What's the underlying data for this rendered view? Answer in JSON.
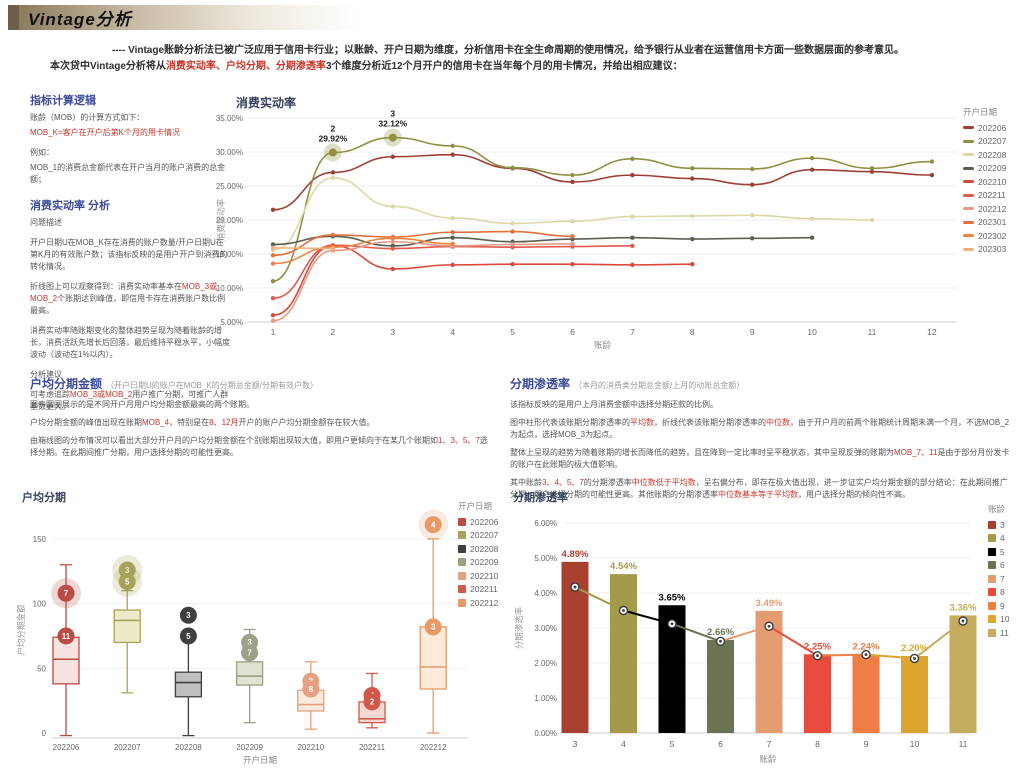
{
  "banner": {
    "title": "Vintage分析"
  },
  "intro": {
    "line1": "---- Vintage账龄分析法已被广泛应用于信用卡行业；以账龄、开户日期为维度，分析信用卡在全生命周期的使用情况，给予银行从业者在运营信用卡方面一些数据层面的参考意见。",
    "line2_parts": [
      {
        "t": "本次贷中Vintage分析将从"
      },
      {
        "t": "消费实动率、户均分期、分期渗透率",
        "red": true
      },
      {
        "t": "3个维度分析近12个月开户的信用卡在当年每个月的用卡情况，并给出相应建议："
      }
    ]
  },
  "left_panel": {
    "h1": "指标计算逻辑",
    "p1": "账龄（MOB）的计算方式如下：",
    "p2_parts": [
      {
        "t": "MOB_K=客户在开户后第K个月的用卡情况",
        "red": true
      }
    ],
    "p3": "例如：",
    "p4": "MOB_1的消费总金额代表在开户当月的账户消费的总金额；",
    "h2": "消费实动率 分析",
    "sub1": "问题描述",
    "p5": "开户日期U在MOB_K存在消费的账户数量/开户日期U在第K月的有效账户数；该指标反映的是用户开户到消费的转化情况。",
    "p6_parts": [
      {
        "t": "折线图上可以观察得到：消费实动率基本在"
      },
      {
        "t": "MOB_3或MOB_2",
        "red": true
      },
      {
        "t": "个账期达到峰值，即信用卡存在消费账户数比例最高。"
      }
    ],
    "p7": "消费实动率随账期变化的整体趋势呈现为随着账龄的增长，消费活跃先增长后回落，最后维持平稳水平，小幅度波动（波动在1%以内）。",
    "sub2": "分析建议",
    "p8_parts": [
      {
        "t": "可考虑追踪"
      },
      {
        "t": "MOB_3或MOB_2",
        "red": true
      },
      {
        "t": "用户推广分期，可推广人群基数更大。"
      }
    ]
  },
  "sec_box": {
    "h": "户均分期金额",
    "note": "（开户日期U的账户在MOB_K的分期总金额/分期有效户数）",
    "p1": "图中圆圈展示的是不同开户月用户均分期金额最高的两个账期。",
    "p2_parts": [
      {
        "t": "户均分期金额的峰值出现在账期"
      },
      {
        "t": "MOB_4",
        "red": true
      },
      {
        "t": "，特别是在"
      },
      {
        "t": "8、12月",
        "red": true
      },
      {
        "t": "开户的账户户均分期金额存在较大值。"
      }
    ],
    "p3_parts": [
      {
        "t": "由箱线图的分布情况可以看出大部分开户月的户均分期金额在个别账期出现较大值，即用户更倾向于在某几个账期如"
      },
      {
        "t": "1、3、5、7",
        "red": true
      },
      {
        "t": "选择分期。在此期间推广分期，用户选择分期的可能性更高。"
      }
    ]
  },
  "sec_pen": {
    "h": "分期渗透率",
    "note": "（本月的消费类分期总金额/上月的动账总金额）",
    "p1": "该指标反映的是用户上月消费金额中选择分期还款的比例。",
    "p2_parts": [
      {
        "t": "图中柱形代表该账期分期渗透率的"
      },
      {
        "t": "平均数",
        "red": true
      },
      {
        "t": "，折线代表该账期分期渗透率的"
      },
      {
        "t": "中位数",
        "red": true
      },
      {
        "t": "，由于开户月的前两个账期统计周期未满一个月，不选MOB_2为起点，选择MOB_3为起点。"
      }
    ],
    "p3_parts": [
      {
        "t": "整体上呈现的趋势为随着账期的增长而降低的趋势，且在降到一定比率时呈平稳状态，其中呈现反弹的账期为"
      },
      {
        "t": "MOB_7、11",
        "red": true
      },
      {
        "t": "是由于部分月份发卡的账户在此账期的极大值影响。"
      }
    ],
    "p4_parts": [
      {
        "t": "其中账龄"
      },
      {
        "t": "3、4、5、7",
        "red": true
      },
      {
        "t": "的分期渗透率"
      },
      {
        "t": "中位数低于平均数",
        "red": true
      },
      {
        "t": "，呈右偏分布，即存在极大值出现，进一步证实户均分期金额的部分结论：在此期间推广分期，用户选择分期的可能性更高。其他账期的分期渗透率"
      },
      {
        "t": "中位数基本等于平均数",
        "red": true
      },
      {
        "t": "，用户选择分期的倾向性不高。"
      }
    ]
  },
  "chart_data": [
    {
      "type": "line",
      "title": "消费实动率",
      "xlabel": "账龄",
      "ylabel": "消费实动率",
      "x": [
        1,
        2,
        3,
        4,
        5,
        6,
        7,
        8,
        9,
        10,
        11,
        12
      ],
      "ylim": [
        5,
        35
      ],
      "yticks": [
        [
          5,
          "5.00%"
        ],
        [
          10,
          "10.00%"
        ],
        [
          15,
          "15.00%"
        ],
        [
          20,
          "20.00%"
        ],
        [
          25,
          "25.00%"
        ],
        [
          30,
          "30.00%"
        ],
        [
          35,
          "35.00%"
        ]
      ],
      "legend_title": "开户日期",
      "series": [
        {
          "name": "202206",
          "color": "#9d4136",
          "values": [
            21.5,
            27.0,
            29.3,
            29.6,
            27.6,
            25.6,
            26.6,
            26.1,
            25.2,
            27.4,
            27.1,
            26.6
          ]
        },
        {
          "name": "202207",
          "color": "#8f9141",
          "values": [
            11.0,
            29.92,
            32.12,
            30.9,
            27.7,
            26.6,
            29.0,
            27.6,
            27.5,
            29.1,
            27.6,
            28.6
          ]
        },
        {
          "name": "202208",
          "color": "#ded7a6",
          "values": [
            15.6,
            26.2,
            22.0,
            20.3,
            19.5,
            19.8,
            20.5,
            20.6,
            20.7,
            20.2,
            20.0
          ]
        },
        {
          "name": "202209",
          "color": "#5c6051",
          "values": [
            16.4,
            17.6,
            16.2,
            17.4,
            16.8,
            17.2,
            17.4,
            17.2,
            17.3,
            17.4
          ]
        },
        {
          "name": "202210",
          "color": "#d9483b",
          "values": [
            6.0,
            16.2,
            12.8,
            13.4,
            13.5,
            13.5,
            13.4,
            13.5
          ]
        },
        {
          "name": "202211",
          "color": "#e05a4e",
          "values": [
            8.5,
            16.3,
            15.8,
            16.1,
            16.0,
            16.1,
            16.2
          ]
        },
        {
          "name": "202212",
          "color": "#e79a85",
          "values": [
            5.2,
            15.5,
            16.8,
            16.2,
            16.4,
            16.5
          ]
        },
        {
          "name": "202301",
          "color": "#e4703d",
          "values": [
            14.8,
            17.8,
            17.5,
            18.2,
            18.3,
            17.6
          ]
        },
        {
          "name": "202302",
          "color": "#ec8642",
          "values": [
            13.6,
            16.0,
            17.3,
            16.5
          ]
        },
        {
          "name": "202303",
          "color": "#eeb07c",
          "values": [
            15.9,
            15.8
          ]
        }
      ],
      "annotations": [
        {
          "series": "202207",
          "x": 2,
          "text_top": "2",
          "text_bottom": "29.92%"
        },
        {
          "series": "202207",
          "x": 3,
          "text_top": "3",
          "text_bottom": "32.12%"
        }
      ]
    },
    {
      "type": "box",
      "title": "户均分期",
      "xlabel": "开户日期",
      "ylabel": "户均分期金额",
      "ylim": [
        0,
        170
      ],
      "yticks": [
        [
          0,
          "0"
        ],
        [
          50,
          "50"
        ],
        [
          100,
          "100"
        ],
        [
          150,
          "150"
        ]
      ],
      "legend_title": "开户日期",
      "boxes": [
        {
          "label": "202206",
          "stroke": "#bb4c44",
          "fill": "#f7e3e1",
          "lo": -2,
          "q1": 38,
          "med": 57,
          "q3": 74,
          "hi": 130,
          "bubbles": [
            {
              "n": "7",
              "v": 108,
              "big": true
            },
            {
              "n": "11",
              "v": 75
            }
          ]
        },
        {
          "label": "202207",
          "stroke": "#a8a258",
          "fill": "#eceac9",
          "lo": 31,
          "q1": 70,
          "med": 87,
          "q3": 95,
          "hi": 110,
          "bubbles": [
            {
              "n": "3",
              "v": 126,
              "big": true
            },
            {
              "n": "5",
              "v": 117,
              "big": true
            }
          ]
        },
        {
          "label": "202208",
          "stroke": "#3f3f3f",
          "fill": "#bfbfbf",
          "lo": -2,
          "q1": 28,
          "med": 39,
          "q3": 47,
          "hi": 74,
          "bubbles": [
            {
              "n": "3",
              "v": 91
            },
            {
              "n": "5",
              "v": 75
            }
          ]
        },
        {
          "label": "202209",
          "stroke": "#9aa184",
          "fill": "#dfe3d2",
          "lo": 8,
          "q1": 37,
          "med": 44,
          "q3": 55,
          "hi": 80,
          "bubbles": [
            {
              "n": "3",
              "v": 70
            },
            {
              "n": "7",
              "v": 62
            }
          ]
        },
        {
          "label": "202210",
          "stroke": "#e5a182",
          "fill": "#fbe9dd",
          "lo": 3,
          "q1": 17,
          "med": 22,
          "q3": 33,
          "hi": 55,
          "bubbles": [
            {
              "n": "3",
              "v": 40
            },
            {
              "n": "8",
              "v": 34
            }
          ]
        },
        {
          "label": "202211",
          "stroke": "#d2574a",
          "fill": "#f8d8d2",
          "lo": 4,
          "q1": 8,
          "med": 11,
          "q3": 24,
          "hi": 46,
          "bubbles": [
            {
              "n": "4",
              "v": 29
            },
            {
              "n": "2",
              "v": 24
            }
          ]
        },
        {
          "label": "202212",
          "stroke": "#e79a67",
          "fill": "#fdeadb",
          "lo": 0,
          "q1": 34,
          "med": 51,
          "q3": 82,
          "hi": 150,
          "bubbles": [
            {
              "n": "4",
              "v": 161,
              "big": true
            },
            {
              "n": "3",
              "v": 82
            }
          ]
        }
      ]
    },
    {
      "type": "bar-line",
      "title": "分期渗透率",
      "xlabel": "账龄",
      "ylabel": "分期渗透率",
      "ylim": [
        0,
        6
      ],
      "yticks": [
        [
          0,
          "0.00%"
        ],
        [
          1,
          "1.00%"
        ],
        [
          2,
          "2.00%"
        ],
        [
          3,
          "3.00%"
        ],
        [
          4,
          "4.00%"
        ],
        [
          5,
          "5.00%"
        ],
        [
          6,
          "6.00%"
        ]
      ],
      "legend_title": "账龄",
      "categories": [
        "3",
        "4",
        "5",
        "6",
        "7",
        "8",
        "9",
        "10",
        "11"
      ],
      "bars": {
        "name": "平均数",
        "values": [
          4.89,
          4.54,
          3.65,
          2.66,
          3.49,
          2.25,
          2.24,
          2.2,
          3.36
        ],
        "labels": [
          "4.89%",
          "4.54%",
          "3.65%",
          "2.66%",
          "3.49%",
          "2.25%",
          "2.24%",
          "2.20%",
          "3.36%"
        ],
        "colors": [
          "#a8402f",
          "#a39a4c",
          "#000000",
          "#6b7355",
          "#e69c72",
          "#e84c3d",
          "#ee7e43",
          "#dca62e",
          "#c4ab5e"
        ]
      },
      "line": {
        "name": "中位数",
        "values": [
          4.17,
          3.5,
          3.12,
          2.62,
          3.05,
          2.21,
          2.24,
          2.13,
          3.2
        ]
      }
    }
  ]
}
